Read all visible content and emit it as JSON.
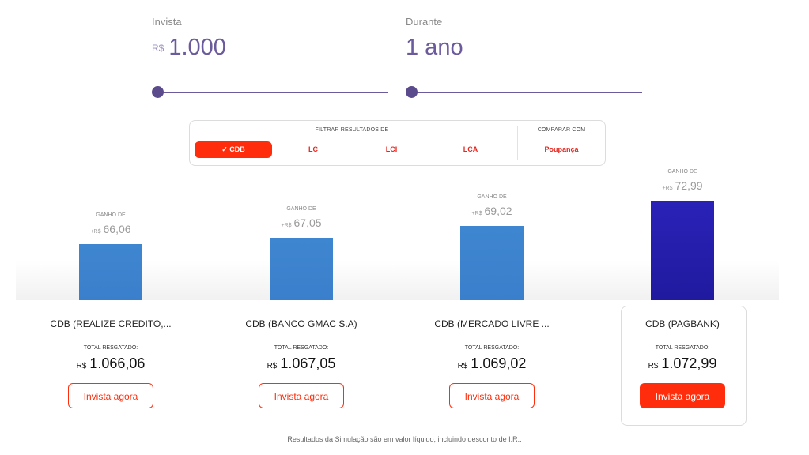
{
  "invest": {
    "label": "Invista",
    "currency": "R$",
    "value": "1.000",
    "slider_fraction": 0.0
  },
  "duration": {
    "label": "Durante",
    "value": "1 ano",
    "slider_fraction": 0.0
  },
  "filter": {
    "title": "FILTRAR RESULTADOS DE",
    "options": [
      {
        "label": "✓ CDB",
        "active": true
      },
      {
        "label": "LC",
        "active": false
      },
      {
        "label": "LCI",
        "active": false
      },
      {
        "label": "LCA",
        "active": false
      }
    ]
  },
  "compare": {
    "title": "COMPARAR COM",
    "option": "Poupança"
  },
  "colors": {
    "accent": "#ff2d0b",
    "bar": "#3f86d0",
    "best_bar": "#2a22b8",
    "slider": "#6b5a9c"
  },
  "results": [
    {
      "gain_label": "GANHO DE",
      "gain_prefix": "+R$",
      "gain": 66.06,
      "gain_text": "66,06",
      "name": "CDB (REALIZE CREDITO,...",
      "total_label": "TOTAL RESGATADO:",
      "total_currency": "R$",
      "total": "1.066,06",
      "button": "Invista agora",
      "best": false
    },
    {
      "gain_label": "GANHO DE",
      "gain_prefix": "+R$",
      "gain": 67.05,
      "gain_text": "67,05",
      "name": "CDB (BANCO GMAC S.A)",
      "total_label": "TOTAL RESGATADO:",
      "total_currency": "R$",
      "total": "1.067,05",
      "button": "Invista agora",
      "best": false
    },
    {
      "gain_label": "GANHO DE",
      "gain_prefix": "+R$",
      "gain": 69.02,
      "gain_text": "69,02",
      "name": "CDB (MERCADO LIVRE ...",
      "total_label": "TOTAL RESGATADO:",
      "total_currency": "R$",
      "total": "1.069,02",
      "button": "Invista agora",
      "best": false
    },
    {
      "gain_label": "GANHO DE",
      "gain_prefix": "+R$",
      "gain": 72.99,
      "gain_text": "72,99",
      "name": "CDB (PAGBANK)",
      "total_label": "TOTAL RESGATADO:",
      "total_currency": "R$",
      "total": "1.072,99",
      "button": "Invista agora",
      "best": true
    }
  ],
  "footnote": "Resultados da Simulação são em valor líquido, incluindo desconto de I.R.."
}
